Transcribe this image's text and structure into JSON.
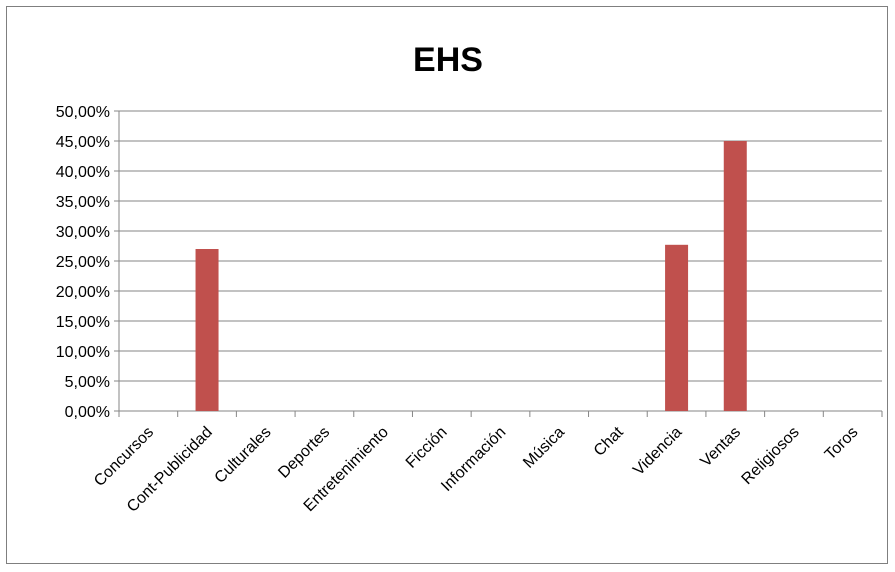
{
  "chart_data": {
    "type": "bar",
    "title": "EHS",
    "xlabel": "",
    "ylabel": "",
    "categories": [
      "Concursos",
      "Cont-Publicidad",
      "Culturales",
      "Deportes",
      "Entretenimiento",
      "Ficción",
      "Información",
      "Música",
      "Chat",
      "Videncia",
      "Ventas",
      "Religiosos",
      "Toros"
    ],
    "values": [
      0,
      0.27,
      0,
      0,
      0,
      0,
      0,
      0,
      0,
      0.277,
      0.45,
      0,
      0
    ],
    "ylim": [
      0,
      0.5
    ],
    "yticks": [
      0,
      0.05,
      0.1,
      0.15,
      0.2,
      0.25,
      0.3,
      0.35,
      0.4,
      0.45,
      0.5
    ],
    "ytick_labels": [
      "0,00%",
      "5,00%",
      "10,00%",
      "15,00%",
      "20,00%",
      "25,00%",
      "30,00%",
      "35,00%",
      "40,00%",
      "45,00%",
      "50,00%"
    ],
    "grid": true,
    "legend": "none",
    "bar_color": "#c0504d",
    "gridline_color": "#868686"
  }
}
